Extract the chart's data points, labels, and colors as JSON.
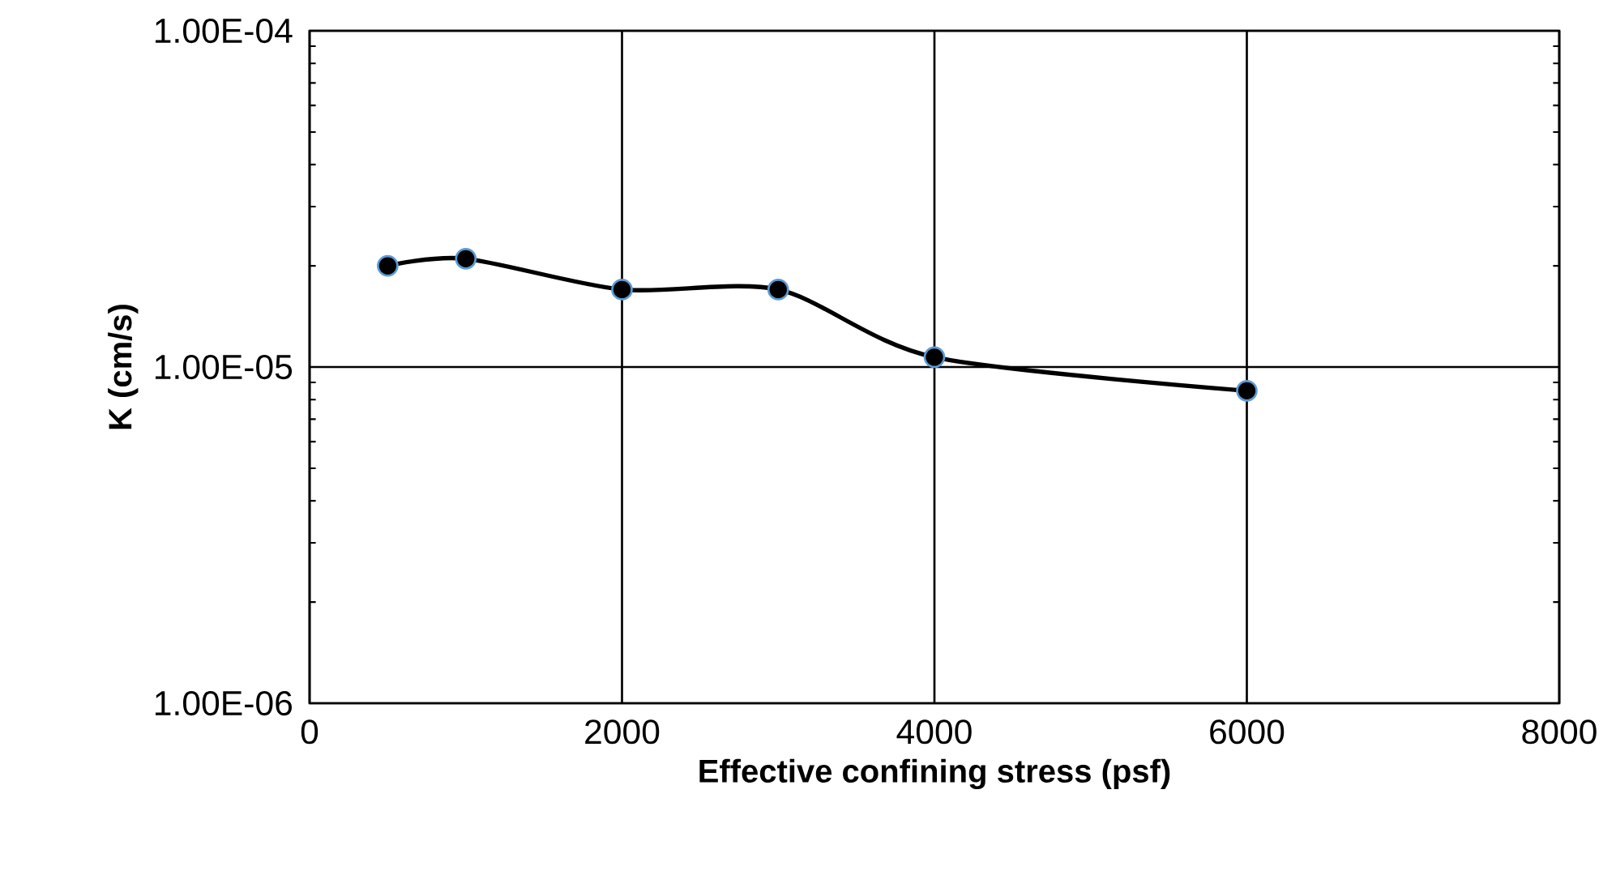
{
  "chart_data": {
    "type": "line",
    "xlabel": "Effective confining stress (psf)",
    "ylabel": "K (cm/s)",
    "log": "y",
    "grid": true,
    "marker": "circle",
    "line_style": "solid",
    "x": [
      500,
      1000,
      2000,
      3000,
      4000,
      6000
    ],
    "series": [
      {
        "color": "#000000",
        "values": [
          2e-05,
          2.1e-05,
          1.7e-05,
          1.7e-05,
          1.07e-05,
          8.5e-06
        ]
      }
    ],
    "xlim": [
      0,
      8000
    ],
    "xticks": [
      0,
      2000,
      4000,
      6000,
      8000
    ],
    "ylim": [
      1e-06,
      0.0001
    ],
    "yticks": [
      {
        "value": 1e-06,
        "label": "1.00E-06"
      },
      {
        "value": 1e-05,
        "label": "1.00E-05"
      },
      {
        "value": 0.0001,
        "label": "1.00E-04"
      }
    ]
  }
}
